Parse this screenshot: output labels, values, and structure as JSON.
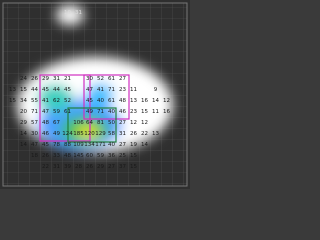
{
  "heatmap_grid": {
    "rows": [
      [
        null,
        null,
        null,
        null,
        null,
        "10",
        "31",
        null,
        null,
        null,
        null,
        null,
        null,
        null,
        null,
        null
      ],
      [
        null,
        null,
        null,
        null,
        null,
        null,
        null,
        null,
        null,
        null,
        null,
        null,
        null,
        null,
        null,
        null
      ],
      [
        null,
        null,
        null,
        null,
        null,
        null,
        null,
        null,
        null,
        null,
        null,
        null,
        null,
        null,
        null,
        null
      ],
      [
        null,
        null,
        null,
        null,
        null,
        null,
        null,
        null,
        null,
        null,
        null,
        null,
        null,
        null,
        null,
        null
      ],
      [
        null,
        null,
        null,
        null,
        null,
        null,
        null,
        null,
        null,
        null,
        null,
        null,
        null,
        null,
        null,
        null
      ],
      [
        null,
        null,
        null,
        null,
        null,
        null,
        null,
        null,
        null,
        null,
        null,
        null,
        null,
        null,
        null,
        null
      ],
      [
        null,
        "24",
        "26",
        "29",
        "31",
        "21",
        null,
        "30",
        "52",
        "61",
        "27",
        null,
        null,
        null,
        null,
        null
      ],
      [
        "13",
        "15",
        "44",
        "45",
        "44",
        "45",
        null,
        "47",
        "41",
        "71",
        "23",
        "11",
        null,
        "9",
        null,
        null
      ],
      [
        "15",
        "34",
        "55",
        "41",
        "62",
        "52",
        null,
        "45",
        "40",
        "61",
        "48",
        "13",
        "16",
        "14",
        "12",
        null
      ],
      [
        null,
        "20",
        "71",
        "47",
        "59",
        "61",
        null,
        "49",
        "71",
        "40",
        "46",
        "23",
        "15",
        "11",
        "16",
        null
      ],
      [
        null,
        "29",
        "57",
        "48",
        "67",
        null,
        "106",
        "64",
        "81",
        "50",
        "27",
        "12",
        "12",
        null,
        null,
        null
      ],
      [
        null,
        "14",
        "30",
        "46",
        "49",
        "124",
        "185",
        "120",
        "129",
        "58",
        "31",
        "26",
        "22",
        "13",
        null,
        null
      ],
      [
        null,
        "14",
        "47",
        "45",
        "78",
        "88",
        "109",
        "134",
        "171",
        "40",
        "27",
        "19",
        "14",
        null,
        null,
        null
      ],
      [
        null,
        null,
        "18",
        "26",
        "33",
        "48",
        "145",
        "60",
        "59",
        "36",
        "25",
        "15",
        null,
        null,
        null,
        null
      ],
      [
        null,
        null,
        null,
        "22",
        "31",
        "39",
        "28",
        "26",
        "29",
        "27",
        "37",
        "15",
        null,
        null,
        null,
        null
      ],
      [
        null,
        null,
        null,
        null,
        null,
        null,
        null,
        null,
        null,
        null,
        null,
        null,
        null,
        null,
        null,
        null
      ]
    ]
  }
}
